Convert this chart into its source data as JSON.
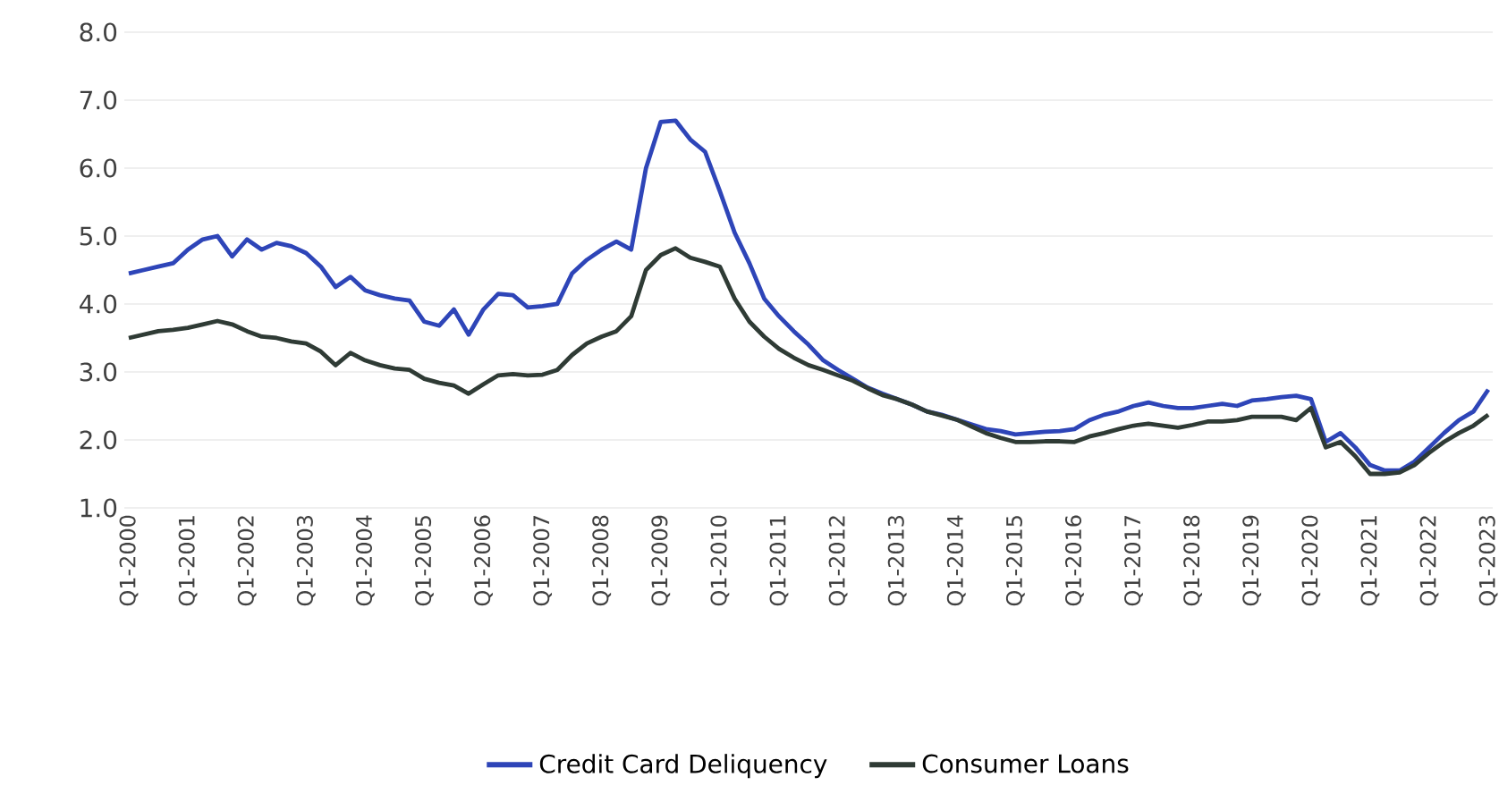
{
  "chart_data": {
    "type": "line",
    "categories": [
      "Q1-2000",
      null,
      null,
      null,
      "Q1-2001",
      null,
      null,
      null,
      "Q1-2002",
      null,
      null,
      null,
      "Q1-2003",
      null,
      null,
      null,
      "Q1-2004",
      null,
      null,
      null,
      "Q1-2005",
      null,
      null,
      null,
      "Q1-2006",
      null,
      null,
      null,
      "Q1-2007",
      null,
      null,
      null,
      "Q1-2008",
      null,
      null,
      null,
      "Q1-2009",
      null,
      null,
      null,
      "Q1-2010",
      null,
      null,
      null,
      "Q1-2011",
      null,
      null,
      null,
      "Q1-2012",
      null,
      null,
      null,
      "Q1-2013",
      null,
      null,
      null,
      "Q1-2014",
      null,
      null,
      null,
      "Q1-2015",
      null,
      null,
      null,
      "Q1-2016",
      null,
      null,
      null,
      "Q1-2017",
      null,
      null,
      null,
      "Q1-2018",
      null,
      null,
      null,
      "Q1-2019",
      null,
      null,
      null,
      "Q1-2020",
      null,
      null,
      null,
      "Q1-2021",
      null,
      null,
      null,
      "Q1-2022",
      null,
      null,
      null,
      "Q1-2023"
    ],
    "series": [
      {
        "name": "Credit Card Deliquency",
        "color": "#2e45b8",
        "values": [
          4.45,
          4.5,
          4.55,
          4.6,
          4.8,
          4.95,
          5.0,
          4.7,
          4.95,
          4.8,
          4.9,
          4.85,
          4.75,
          4.55,
          4.25,
          4.4,
          4.2,
          4.13,
          4.08,
          4.05,
          3.74,
          3.68,
          3.92,
          3.55,
          3.92,
          4.15,
          4.13,
          3.95,
          3.97,
          4.0,
          4.45,
          4.65,
          4.8,
          4.92,
          4.8,
          6.0,
          6.68,
          6.7,
          6.42,
          6.24,
          5.66,
          5.05,
          4.6,
          4.08,
          3.82,
          3.6,
          3.4,
          3.17,
          3.03,
          2.9,
          2.77,
          2.68,
          2.6,
          2.52,
          2.42,
          2.37,
          2.3,
          2.23,
          2.16,
          2.13,
          2.08,
          2.1,
          2.12,
          2.13,
          2.16,
          2.29,
          2.37,
          2.42,
          2.5,
          2.55,
          2.5,
          2.47,
          2.47,
          2.5,
          2.53,
          2.5,
          2.58,
          2.6,
          2.63,
          2.65,
          2.6,
          1.97,
          2.1,
          1.89,
          1.63,
          1.55,
          1.55,
          1.68,
          1.89,
          2.1,
          2.29,
          2.42,
          2.74
        ]
      },
      {
        "name": "Consumer Loans",
        "color": "#2f3b35",
        "values": [
          3.5,
          3.55,
          3.6,
          3.62,
          3.65,
          3.7,
          3.75,
          3.7,
          3.6,
          3.52,
          3.5,
          3.45,
          3.42,
          3.3,
          3.1,
          3.28,
          3.17,
          3.1,
          3.05,
          3.03,
          2.9,
          2.84,
          2.8,
          2.68,
          2.82,
          2.95,
          2.97,
          2.95,
          2.96,
          3.03,
          3.25,
          3.42,
          3.52,
          3.6,
          3.82,
          4.5,
          4.72,
          4.82,
          4.68,
          4.62,
          4.55,
          4.08,
          3.74,
          3.52,
          3.34,
          3.21,
          3.1,
          3.03,
          2.95,
          2.87,
          2.76,
          2.66,
          2.6,
          2.52,
          2.42,
          2.36,
          2.3,
          2.2,
          2.1,
          2.03,
          1.97,
          1.97,
          1.98,
          1.98,
          1.97,
          2.05,
          2.1,
          2.16,
          2.21,
          2.24,
          2.21,
          2.18,
          2.22,
          2.27,
          2.27,
          2.29,
          2.34,
          2.34,
          2.34,
          2.29,
          2.47,
          1.89,
          1.97,
          1.76,
          1.5,
          1.5,
          1.52,
          1.63,
          1.81,
          1.97,
          2.1,
          2.21,
          2.37
        ]
      }
    ],
    "ylim": [
      1,
      8
    ],
    "yticks": [
      {
        "value": 1,
        "label": "1.0"
      },
      {
        "value": 2,
        "label": "2.0"
      },
      {
        "value": 3,
        "label": "3.0"
      },
      {
        "value": 4,
        "label": "4.0"
      },
      {
        "value": 5,
        "label": "5.0"
      },
      {
        "value": 6,
        "label": "6.0"
      },
      {
        "value": 7,
        "label": "7.0"
      },
      {
        "value": 8,
        "label": "8.0"
      }
    ],
    "grid": "y",
    "legend": "bottom",
    "marker": "none",
    "line_style": "solid"
  }
}
